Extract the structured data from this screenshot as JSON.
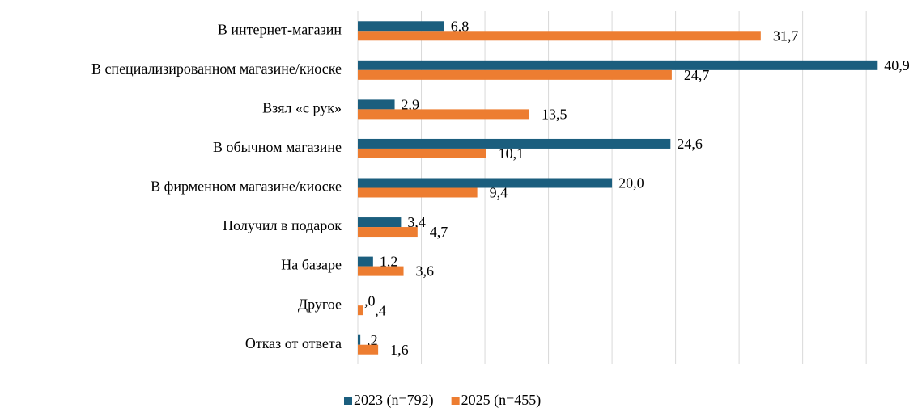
{
  "chart_data": {
    "type": "barh",
    "categories": [
      "В интернет-магазин",
      "В специализированном магазине/киоске",
      "Взял «с рук»",
      "В обычном магазине",
      "В фирменном магазине/киоске",
      "Получил в подарок",
      "На базаре",
      "Другое",
      "Отказ от ответа"
    ],
    "series": [
      {
        "name": "2023 (n=792)",
        "color": "#1b5e7e",
        "values": [
          6.8,
          40.9,
          2.9,
          24.6,
          20.0,
          3.4,
          1.2,
          0,
          0.2
        ],
        "value_labels": [
          "6,8",
          "40,9",
          "2,9",
          "24,6",
          "20,0",
          "3,4",
          "1,2",
          ",0",
          ",2"
        ]
      },
      {
        "name": "2025 (n=455)",
        "color": "#ed7d31",
        "values": [
          31.7,
          24.7,
          13.5,
          10.1,
          9.4,
          4.7,
          3.6,
          0.4,
          1.6
        ],
        "value_labels": [
          "31,7",
          "24,7",
          "13,5",
          "10,1",
          "9,4",
          "4,7",
          "3,6",
          ",4",
          "1,6"
        ]
      }
    ],
    "xlim": [
      0,
      42.6
    ],
    "xticks": [
      0,
      5,
      10,
      15,
      20,
      25,
      30,
      35,
      40
    ],
    "grid": true,
    "legend": "bottom"
  }
}
